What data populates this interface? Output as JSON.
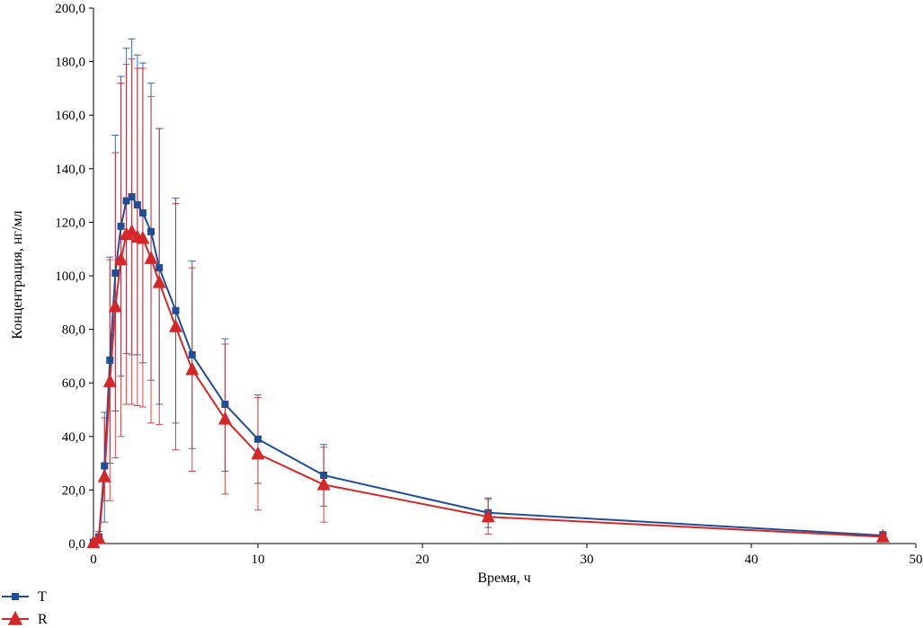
{
  "chart_data": {
    "type": "line",
    "xlabel": "Время, ч",
    "ylabel": "Концентрация, нг/мл",
    "xlim": [
      0,
      50
    ],
    "ylim": [
      0,
      200
    ],
    "x_ticks": [
      0,
      10,
      20,
      30,
      40,
      50
    ],
    "y_ticks": [
      0,
      20,
      40,
      60,
      80,
      100,
      120,
      140,
      160,
      180,
      200
    ],
    "x_tick_labels": [
      "0",
      "10",
      "20",
      "30",
      "40",
      "50"
    ],
    "y_tick_labels": [
      "0,0",
      "20,0",
      "40,0",
      "60,0",
      "80,0",
      "100,0",
      "120,0",
      "140,0",
      "160,0",
      "180,0",
      "200,0"
    ],
    "grid": false,
    "legend_position": "bottom-left",
    "series": [
      {
        "name": "T",
        "color": "#1f4e96",
        "marker": "square",
        "x": [
          0,
          0.33,
          0.67,
          1,
          1.33,
          1.67,
          2,
          2.33,
          2.67,
          3,
          3.5,
          4,
          5,
          6,
          8,
          10,
          14,
          24,
          48
        ],
        "y": [
          0.5,
          2.5,
          29,
          68.5,
          101,
          118.5,
          128,
          129.5,
          126.5,
          123.5,
          116.5,
          103,
          87,
          70.5,
          52,
          39,
          25.5,
          11.5,
          3
        ],
        "err_upper": [
          0.5,
          2,
          20,
          38.5,
          51.5,
          56,
          57,
          59,
          56,
          56,
          55.5,
          52,
          42,
          35,
          24.5,
          16.5,
          11.5,
          5.5,
          1.5
        ],
        "err_lower": [
          0.5,
          1.5,
          21,
          38.5,
          51.5,
          56,
          57,
          59,
          56,
          56,
          55.5,
          51,
          42,
          35,
          25,
          16.5,
          11.5,
          5.5,
          1.5
        ]
      },
      {
        "name": "R",
        "color": "#d62728",
        "marker": "triangle",
        "x": [
          0,
          0.33,
          0.67,
          1,
          1.33,
          1.67,
          2,
          2.33,
          2.67,
          3,
          3.5,
          4,
          5,
          6,
          8,
          10,
          14,
          24,
          48
        ],
        "y": [
          0.3,
          2,
          25,
          60.5,
          88.5,
          106,
          115.5,
          116.5,
          114.5,
          114,
          106.5,
          97.5,
          81,
          65,
          46.5,
          33.5,
          22,
          10,
          2.5
        ],
        "err_upper": [
          0.3,
          1.5,
          22,
          45.5,
          57.5,
          66,
          63.5,
          64.5,
          63,
          63.5,
          60.5,
          57.5,
          46,
          38,
          28,
          21,
          14,
          6.5,
          1.5
        ],
        "err_lower": [
          0.3,
          1.5,
          9,
          44.5,
          56.5,
          66,
          63.5,
          64.5,
          63,
          63,
          61.5,
          53,
          46,
          38,
          28,
          21,
          14,
          6.5,
          1.5
        ]
      }
    ]
  }
}
